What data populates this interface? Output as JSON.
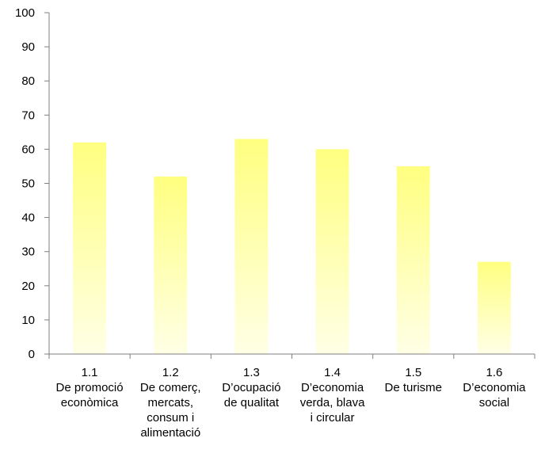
{
  "chart_data": {
    "type": "bar",
    "title": "",
    "xlabel": "",
    "ylabel": "",
    "ylim": [
      0,
      100
    ],
    "yticks": [
      0,
      10,
      20,
      30,
      40,
      50,
      60,
      70,
      80,
      90,
      100
    ],
    "grid": false,
    "legend": "none",
    "categories": [
      [
        "1.1",
        "De promoció",
        "econòmica"
      ],
      [
        "1.2",
        "De comerç,",
        "mercats,",
        "consum i",
        "alimentació"
      ],
      [
        "1.3",
        "D’ocupació",
        "de qualitat"
      ],
      [
        "1.4",
        "D’economia",
        "verda, blava",
        "i circular"
      ],
      [
        "1.5",
        "De turisme"
      ],
      [
        "1.6",
        "D’economia",
        "social"
      ]
    ],
    "values": [
      62,
      52,
      63,
      60,
      55,
      27
    ],
    "bar_color_top": "#ffff80",
    "bar_color_bottom": "#ffffe6",
    "axis_color": "#7f7f7f"
  }
}
